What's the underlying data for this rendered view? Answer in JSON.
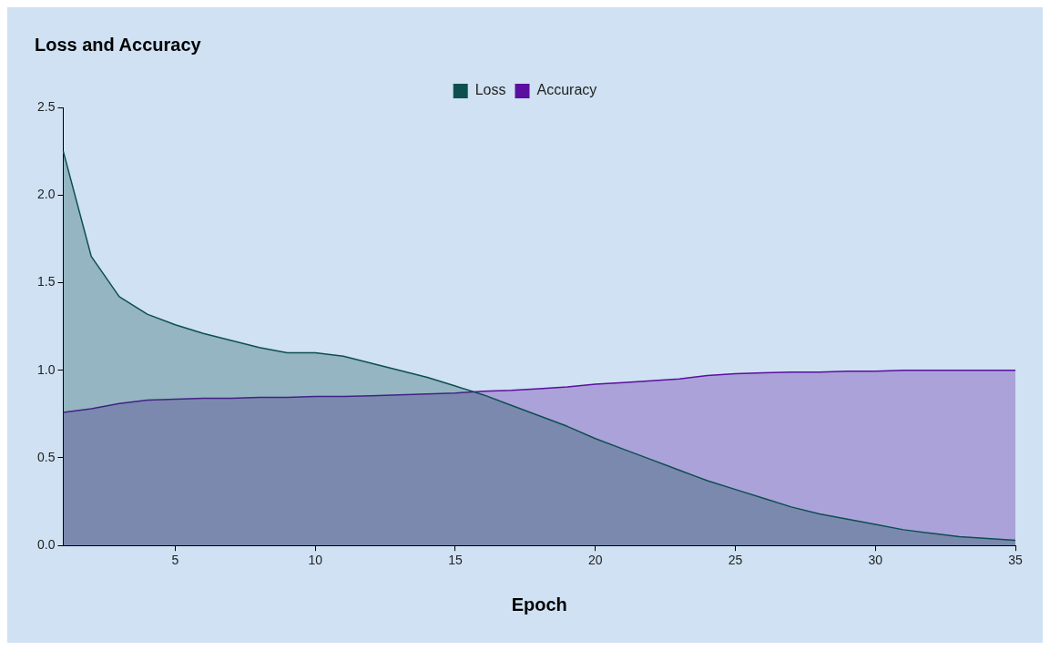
{
  "chart_data": {
    "type": "area",
    "title": "Loss and Accuracy",
    "xlabel": "Epoch",
    "x": [
      1,
      2,
      3,
      4,
      5,
      6,
      7,
      8,
      9,
      10,
      11,
      12,
      13,
      14,
      15,
      16,
      17,
      18,
      19,
      20,
      21,
      22,
      23,
      24,
      25,
      26,
      27,
      28,
      29,
      30,
      31,
      32,
      33,
      34,
      35
    ],
    "series": [
      {
        "name": "Loss",
        "color": "#0d4f4f",
        "values": [
          2.25,
          1.65,
          1.42,
          1.32,
          1.26,
          1.21,
          1.17,
          1.13,
          1.1,
          1.1,
          1.08,
          1.04,
          1.0,
          0.96,
          0.91,
          0.86,
          0.8,
          0.74,
          0.68,
          0.61,
          0.55,
          0.49,
          0.43,
          0.37,
          0.32,
          0.27,
          0.22,
          0.18,
          0.15,
          0.12,
          0.09,
          0.07,
          0.05,
          0.04,
          0.03
        ]
      },
      {
        "name": "Accuracy",
        "color": "#5b0f9e",
        "values": [
          0.76,
          0.78,
          0.81,
          0.83,
          0.835,
          0.84,
          0.84,
          0.845,
          0.845,
          0.85,
          0.85,
          0.855,
          0.86,
          0.865,
          0.87,
          0.88,
          0.885,
          0.895,
          0.905,
          0.92,
          0.93,
          0.94,
          0.95,
          0.97,
          0.98,
          0.985,
          0.99,
          0.99,
          0.995,
          0.995,
          1.0,
          1.0,
          1.0,
          1.0,
          1.0
        ]
      }
    ],
    "xlim": [
      1,
      35
    ],
    "xticks": [
      5,
      10,
      15,
      20,
      25,
      30,
      35
    ],
    "ylim": [
      0,
      2.5
    ],
    "yticks": [
      {
        "value": 0,
        "label": "0.0"
      },
      0.5,
      {
        "value": 1,
        "label": "1.0"
      },
      1.5,
      {
        "value": 2,
        "label": "2.0"
      },
      2.5
    ],
    "grid": false,
    "legend": "top",
    "marker": "none"
  }
}
